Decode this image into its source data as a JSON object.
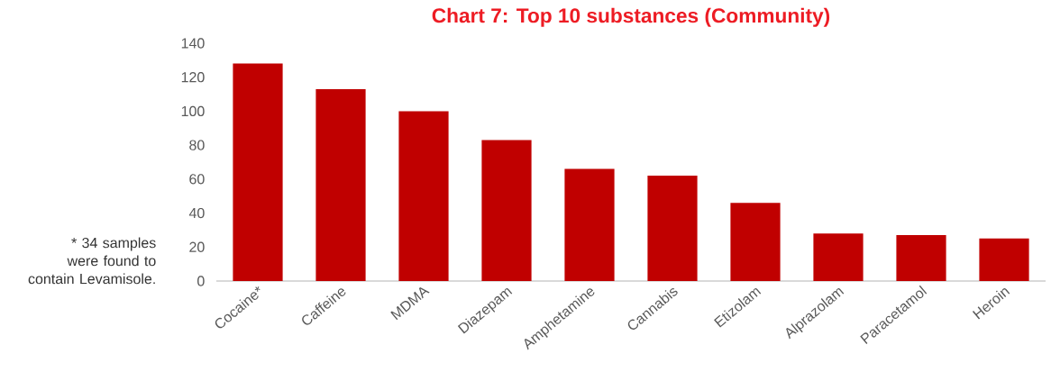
{
  "chart_data": {
    "type": "bar",
    "title": "Chart 7: Top 10 substances (Community)",
    "categories": [
      "Cocaine*",
      "Caffeine",
      "MDMA",
      "Diazepam",
      "Amphetamine",
      "Cannabis",
      "Etizolam",
      "Alprazolam",
      "Paracetamol",
      "Heroin"
    ],
    "values": [
      128,
      113,
      100,
      83,
      66,
      62,
      46,
      28,
      27,
      25
    ],
    "color": "#c00000",
    "ylim": [
      0,
      140
    ],
    "yticks": [
      0,
      20,
      40,
      60,
      80,
      100,
      120,
      140
    ],
    "annotations": [
      "* 34 samples were found to contain Levamisole."
    ]
  }
}
